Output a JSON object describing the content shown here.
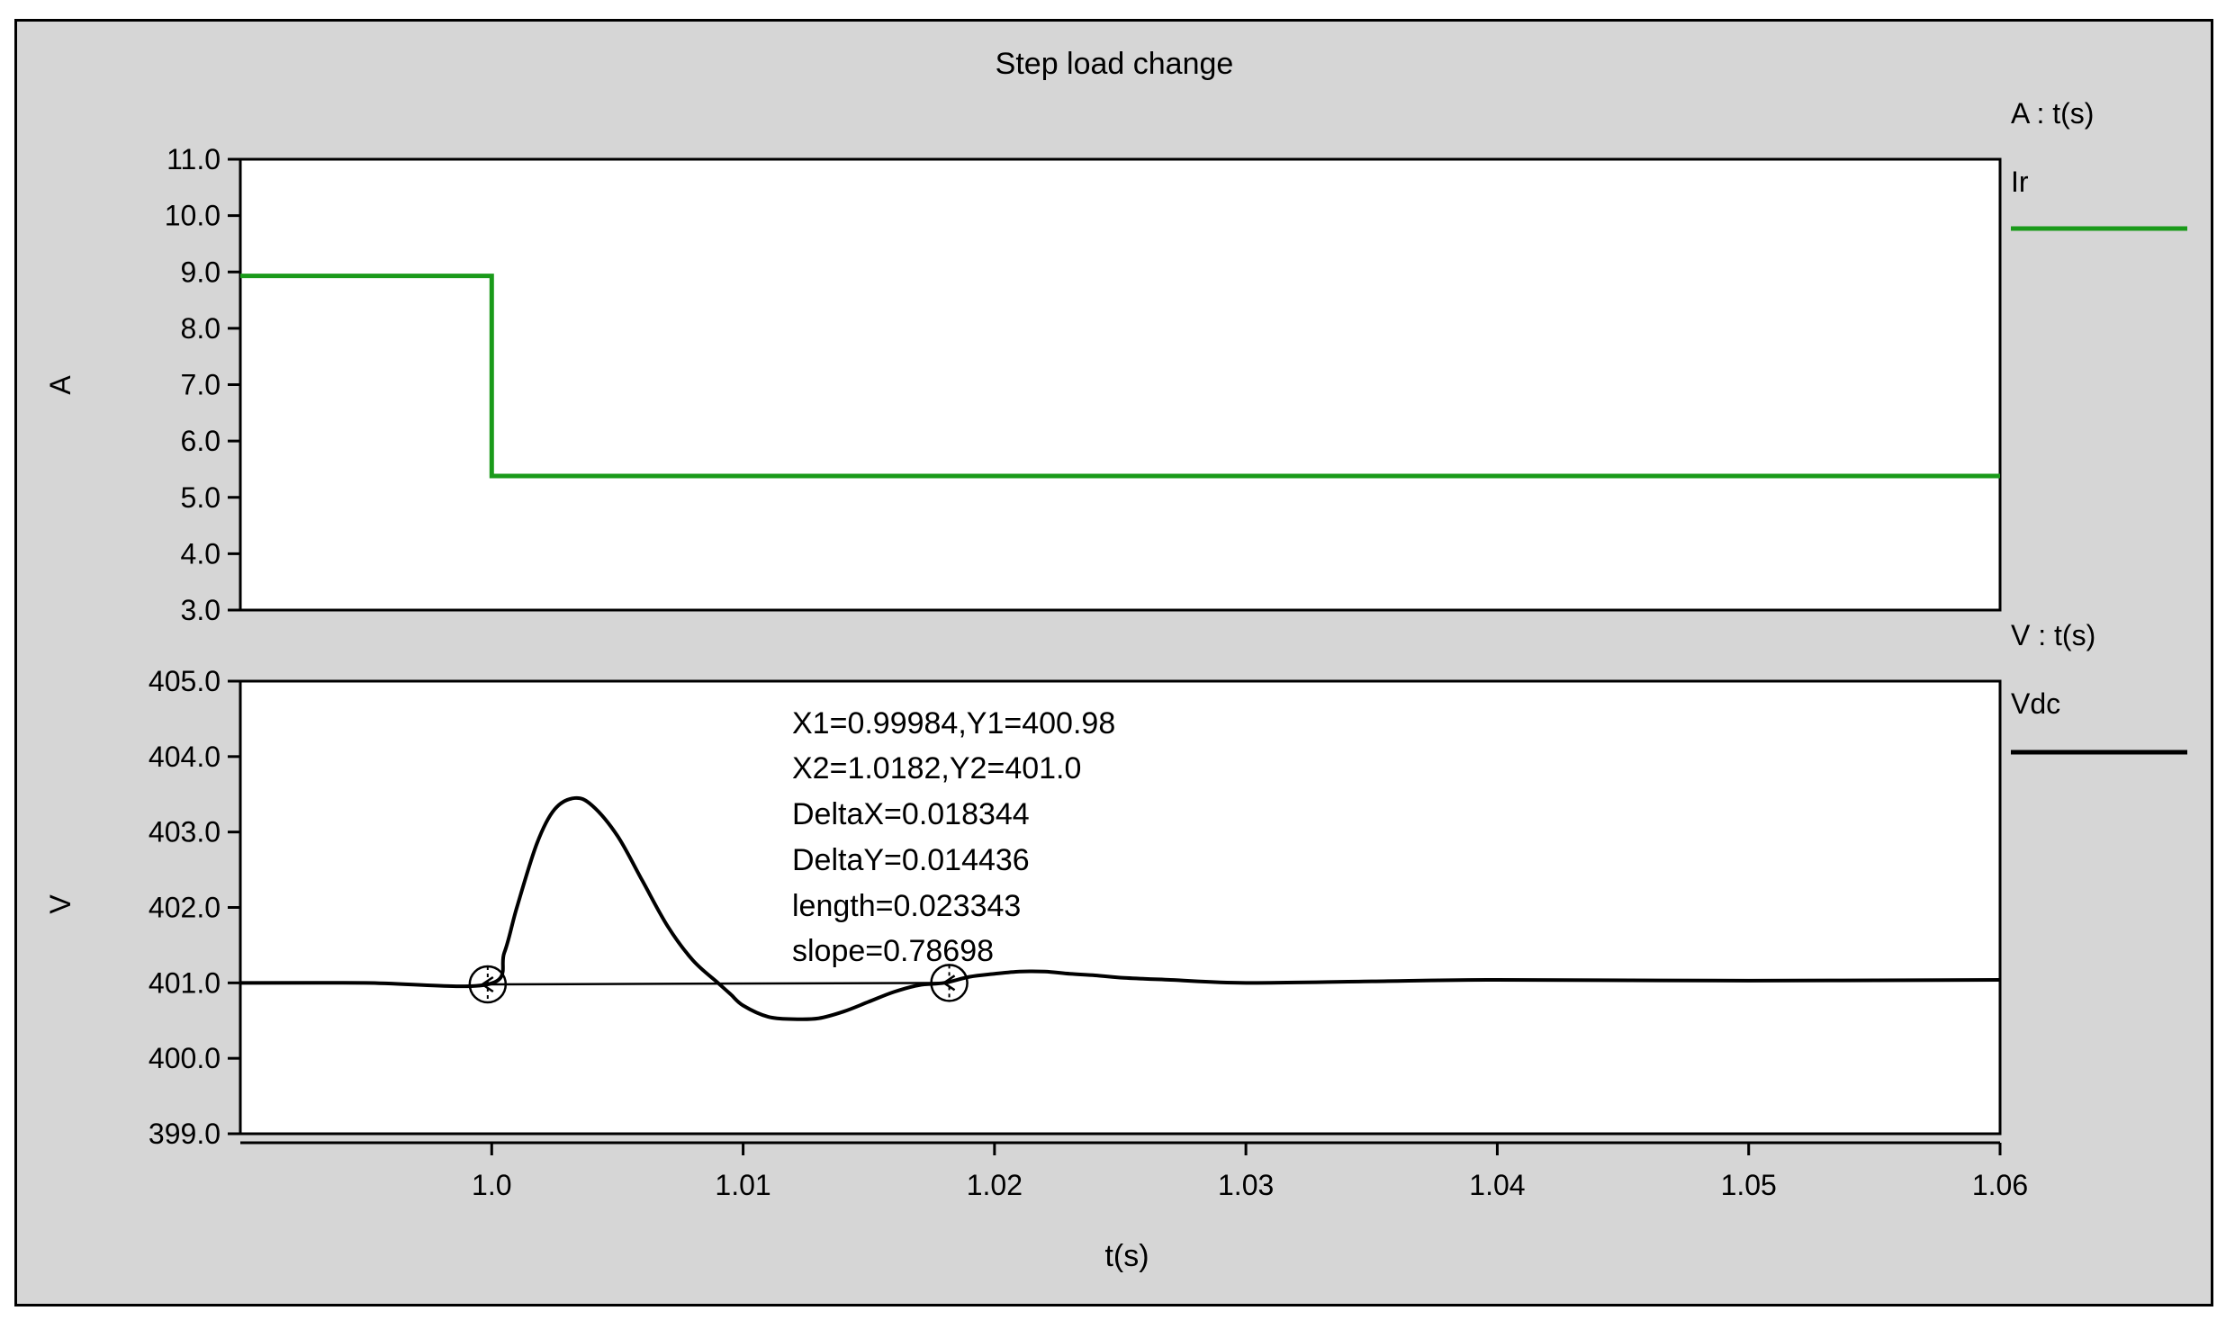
{
  "chart_data": [
    {
      "type": "line",
      "title": "Step load change",
      "ylabel": "A",
      "units_label": "A : t(s)",
      "ylim": [
        3.0,
        11.0
      ],
      "yticks": [
        "3.0",
        "4.0",
        "5.0",
        "6.0",
        "7.0",
        "8.0",
        "9.0",
        "10.0",
        "11.0"
      ],
      "xlim": [
        0.99,
        1.06
      ],
      "grid": false,
      "legend": "right",
      "series": [
        {
          "name": "Ir",
          "color": "#1a9a1a",
          "x": [
            0.99,
            1.0,
            1.0,
            1.06
          ],
          "y": [
            8.93,
            8.93,
            5.38,
            5.38
          ]
        }
      ]
    },
    {
      "type": "line",
      "ylabel": "V",
      "xlabel": "t(s)",
      "units_label": "V : t(s)",
      "ylim": [
        399.0,
        405.0
      ],
      "yticks": [
        "399.0",
        "400.0",
        "401.0",
        "402.0",
        "403.0",
        "404.0",
        "405.0"
      ],
      "xlim": [
        0.99,
        1.06
      ],
      "xticks": [
        "1.0",
        "1.01",
        "1.02",
        "1.03",
        "1.04",
        "1.05",
        "1.06"
      ],
      "xtick_values": [
        1.0,
        1.01,
        1.02,
        1.03,
        1.04,
        1.05,
        1.06
      ],
      "grid": false,
      "legend": "right",
      "series": [
        {
          "name": "Vdc",
          "color": "#000000",
          "x": [
            0.99,
            0.995,
            0.99984,
            1.0005,
            1.001,
            1.0018,
            1.0025,
            1.0033,
            1.004,
            1.005,
            1.006,
            1.007,
            1.008,
            1.009,
            1.0095,
            1.01,
            1.011,
            1.012,
            1.013,
            1.014,
            1.015,
            1.016,
            1.017,
            1.018,
            1.019,
            1.02,
            1.021,
            1.022,
            1.023,
            1.024,
            1.025,
            1.027,
            1.03,
            1.035,
            1.04,
            1.05,
            1.06
          ],
          "y": [
            401.0,
            401.0,
            400.98,
            401.4,
            402.0,
            402.85,
            403.3,
            403.45,
            403.35,
            402.95,
            402.35,
            401.75,
            401.3,
            401.0,
            400.85,
            400.7,
            400.55,
            400.52,
            400.53,
            400.62,
            400.75,
            400.88,
            400.97,
            401.0,
            401.08,
            401.12,
            401.15,
            401.15,
            401.12,
            401.1,
            401.07,
            401.04,
            401.0,
            401.02,
            401.04,
            401.03,
            401.04
          ]
        }
      ],
      "cursor_line": {
        "x": [
          0.99984,
          1.0182
        ],
        "y": [
          400.98,
          401.0
        ]
      },
      "cursors": [
        {
          "x": 0.99984,
          "y": 400.98
        },
        {
          "x": 1.0182,
          "y": 401.0
        }
      ],
      "annotations": [
        "X1=0.99984,Y1=400.98",
        "X2=1.0182,Y2=401.0",
        "DeltaX=0.018344",
        "DeltaY=0.014436",
        "length=0.023343",
        "slope=0.78698"
      ]
    }
  ]
}
